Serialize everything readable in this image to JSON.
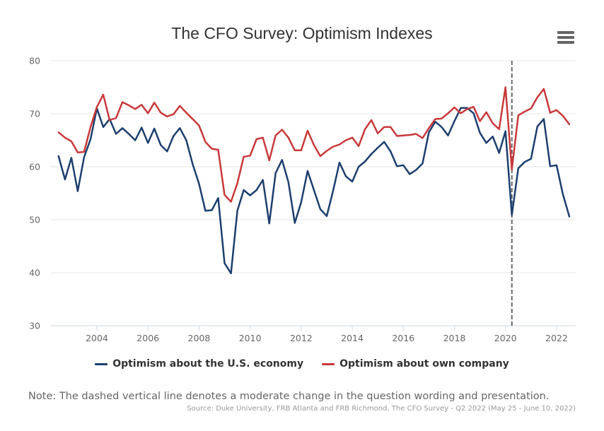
{
  "chart_data": {
    "type": "line",
    "title": "The CFO Survey: Optimism Indexes",
    "xlabel": "",
    "ylabel": "",
    "x_start": 2002.5,
    "x_step": 0.25,
    "xlim": [
      2002.2,
      2022.75
    ],
    "ylim": [
      30,
      80
    ],
    "y_ticks": [
      30,
      40,
      50,
      60,
      70,
      80
    ],
    "x_ticks": [
      2004,
      2006,
      2008,
      2010,
      2012,
      2014,
      2016,
      2018,
      2020,
      2022
    ],
    "grid": true,
    "legend_position": "bottom-center",
    "annotation": {
      "type": "dashed-vertical-line",
      "x": 2020.25
    },
    "series": [
      {
        "name": "Optimism about the U.S. economy",
        "color": "#1d3f6e",
        "values": [
          62.0,
          57.6,
          61.7,
          55.4,
          61.8,
          65.2,
          71.0,
          67.5,
          69.0,
          66.2,
          67.3,
          66.2,
          65.0,
          67.4,
          64.5,
          67.2,
          64.1,
          62.9,
          65.8,
          67.3,
          65.0,
          60.5,
          56.8,
          51.7,
          51.8,
          54.1,
          41.8,
          39.9,
          51.7,
          55.6,
          54.6,
          55.6,
          57.5,
          49.3,
          58.8,
          61.3,
          57.1,
          49.4,
          53.3,
          59.2,
          55.6,
          52.0,
          50.7,
          55.5,
          60.8,
          58.2,
          57.2,
          60.0,
          61.0,
          62.4,
          63.6,
          64.7,
          62.9,
          60.1,
          60.3,
          58.6,
          59.4,
          60.6,
          66.5,
          68.5,
          67.5,
          65.9,
          68.6,
          71.1,
          71.1,
          70.1,
          66.4,
          64.5,
          65.7,
          62.6,
          66.7,
          50.9,
          59.7,
          60.9,
          61.5,
          67.6,
          69.0,
          60.1,
          60.3,
          54.8,
          50.6
        ]
      },
      {
        "name": "Optimism about own company",
        "color": "#c8393b",
        "values": [
          66.5,
          65.5,
          64.8,
          62.7,
          62.8,
          67.5,
          71.3,
          73.6,
          68.8,
          69.2,
          72.2,
          71.6,
          70.9,
          71.7,
          70.1,
          72.1,
          70.2,
          69.5,
          69.9,
          71.5,
          70.2,
          69.0,
          67.8,
          64.7,
          63.4,
          63.2,
          54.7,
          53.4,
          56.9,
          61.9,
          62.1,
          65.2,
          65.5,
          61.2,
          65.9,
          67.0,
          65.5,
          63.1,
          63.1,
          66.8,
          64.1,
          62.0,
          63.0,
          63.8,
          64.2,
          65.0,
          65.5,
          63.9,
          67.1,
          68.8,
          66.3,
          67.5,
          67.5,
          65.8,
          65.9,
          66.0,
          66.2,
          65.4,
          67.3,
          69.0,
          69.1,
          70.1,
          71.2,
          70.1,
          70.9,
          71.3,
          68.6,
          70.3,
          68.2,
          67.1,
          75.0,
          59.5,
          69.7,
          70.4,
          71.0,
          73.1,
          74.7,
          70.2,
          70.7,
          69.6,
          68.0
        ]
      }
    ]
  },
  "header": {
    "title": "The CFO Survey: Optimism Indexes",
    "menu_icon": "hamburger-menu-icon"
  },
  "legend": [
    {
      "label": "Optimism about the U.S. economy",
      "color": "#1d3f6e"
    },
    {
      "label": "Optimism about own company",
      "color": "#c8393b"
    }
  ],
  "footer": {
    "note": "Note: The dashed vertical line denotes a moderate change in the question wording and presentation.",
    "source": "Source: Duke University, FRB Atlanta and FRB Richmond, The CFO Survey - Q2 2022 (May 25 - June 10, 2022)"
  }
}
